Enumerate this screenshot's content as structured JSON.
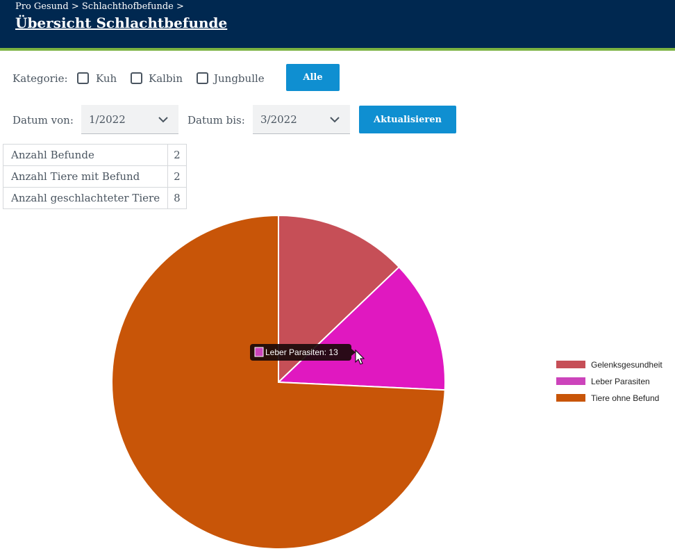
{
  "header": {
    "breadcrumb": "Pro Gesund > Schlachthofbefunde >",
    "title": "Übersicht Schlachtbefunde"
  },
  "filters": {
    "kategorie_label": "Kategorie:",
    "checkboxes": [
      {
        "label": "Kuh",
        "checked": false
      },
      {
        "label": "Kalbin",
        "checked": false
      },
      {
        "label": "Jungbulle",
        "checked": false
      }
    ],
    "all_button": "Alle",
    "date_from_label": "Datum von:",
    "date_from_value": "1/2022",
    "date_to_label": "Datum bis:",
    "date_to_value": "3/2022",
    "refresh_button": "Aktualisieren"
  },
  "stats": [
    {
      "label": "Anzahl Befunde",
      "value": "2"
    },
    {
      "label": "Anzahl Tiere mit Befund",
      "value": "2"
    },
    {
      "label": "Anzahl geschlachteter Tiere",
      "value": "8"
    }
  ],
  "chart_data": {
    "type": "pie",
    "categories": [
      "Gelenksgesundheit",
      "Leber Parasiten",
      "Tiere ohne Befund"
    ],
    "values": [
      13,
      13,
      75
    ],
    "colors": [
      "#c64f57",
      "#e018c0",
      "#c85508"
    ],
    "legend_colors": [
      "#c64f57",
      "#cc44bb",
      "#c85508"
    ],
    "legend_position": "right",
    "tooltip": {
      "category": "Leber Parasiten",
      "text": "Leber Parasiten: 13",
      "color": "#cc44bb"
    }
  }
}
